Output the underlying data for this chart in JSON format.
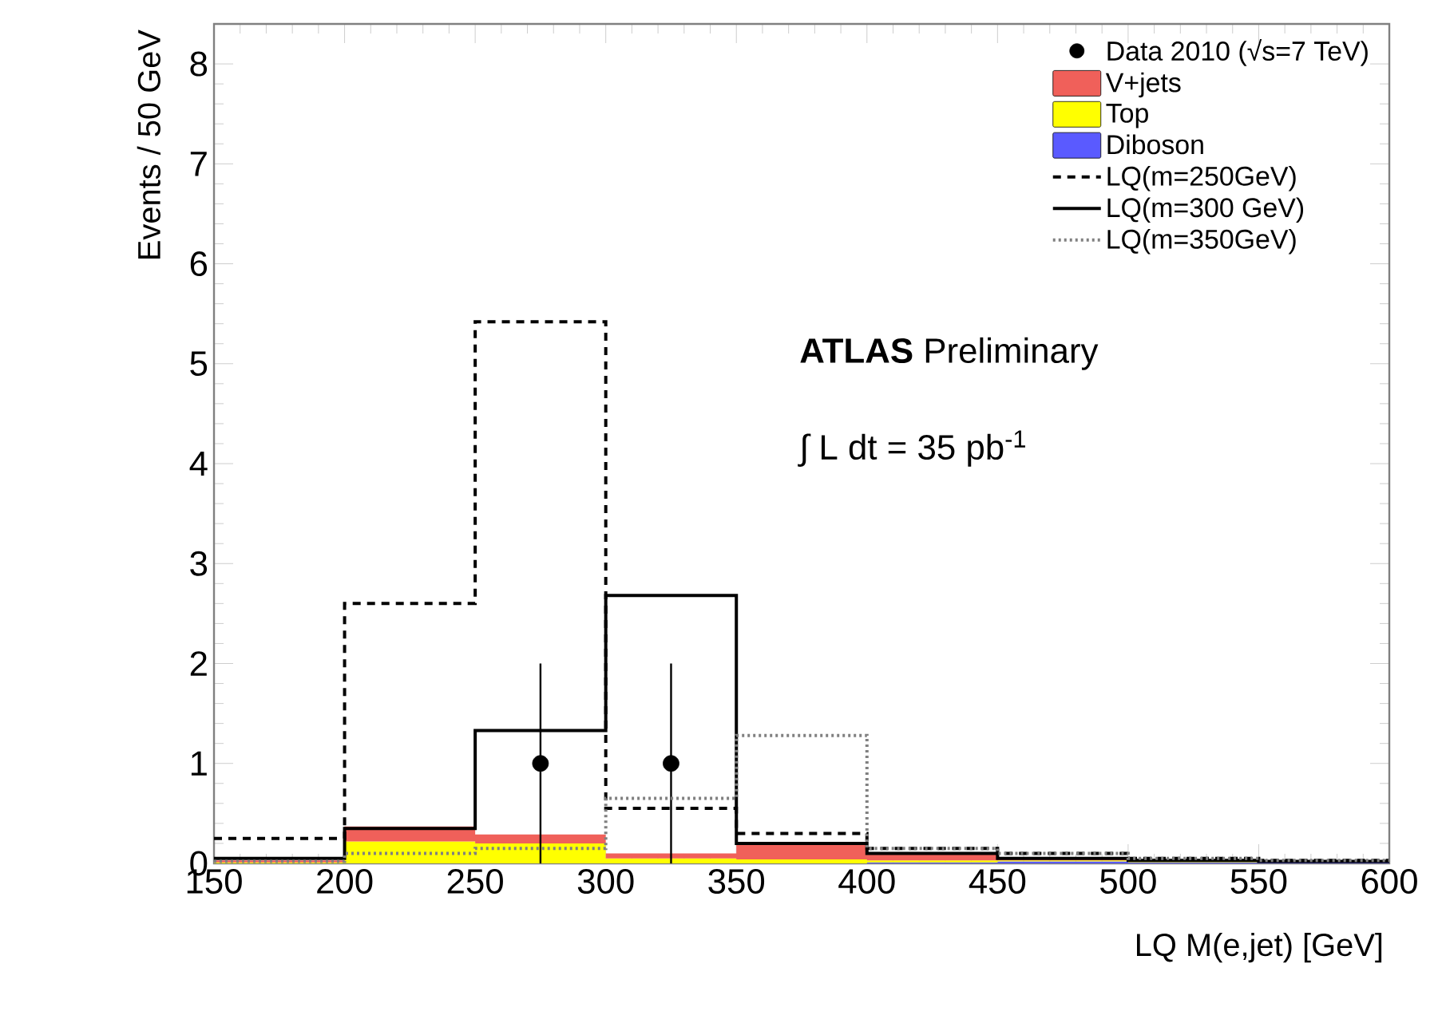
{
  "chart_data": {
    "type": "step",
    "xlabel": "LQ M(e,jet) [GeV]",
    "ylabel": "Events / 50 GeV",
    "stacked": true,
    "series": [
      {
        "name": "Data 2010 (√s=7 TeV)",
        "type": "scatter",
        "color": "#000000",
        "marker": "circle",
        "x": [
          275,
          325
        ],
        "values": [
          1,
          1
        ],
        "errors": [
          1,
          1
        ]
      },
      {
        "name": "Diboson",
        "type": "area",
        "color": "#5a5aff",
        "x": [
          150,
          200,
          250,
          300,
          350,
          400,
          450,
          500,
          550,
          600
        ],
        "values": [
          0,
          0,
          0,
          0,
          0,
          0.01,
          0.02,
          0.01,
          0.01,
          0.01
        ]
      },
      {
        "name": "Top",
        "type": "area",
        "color": "#ffff00",
        "x": [
          150,
          200,
          250,
          300,
          350,
          400,
          450,
          500,
          550,
          600
        ],
        "values": [
          0.01,
          0.22,
          0.2,
          0.05,
          0.04,
          0.02,
          0.01,
          0.01,
          0,
          0
        ]
      },
      {
        "name": "V+jets",
        "type": "area",
        "color": "#f0605a",
        "x": [
          150,
          200,
          250,
          300,
          350,
          400,
          450,
          500,
          550,
          600
        ],
        "values": [
          0.02,
          0.15,
          0.09,
          0.05,
          0.16,
          0.07,
          0.02,
          0.01,
          0.01,
          0.01
        ]
      },
      {
        "name": "LQ(m=250GeV)",
        "color": "#000000",
        "line_style": "dashed",
        "x": [
          150,
          200,
          250,
          300,
          350,
          400,
          450,
          500,
          550,
          600
        ],
        "values": [
          0.25,
          2.6,
          5.42,
          0.55,
          0.3,
          0.15,
          0.1,
          0.05,
          0.03,
          0.03
        ]
      },
      {
        "name": "LQ(m=300 GeV)",
        "color": "#000000",
        "line_style": "solid",
        "x": [
          150,
          200,
          250,
          300,
          350,
          400,
          450,
          500,
          550,
          600
        ],
        "values": [
          0.05,
          0.35,
          1.33,
          2.68,
          0.2,
          0.1,
          0.05,
          0.03,
          0.02,
          0.02
        ]
      },
      {
        "name": "LQ(m=350GeV)",
        "color": "#808080",
        "line_style": "dotted",
        "x": [
          150,
          200,
          250,
          300,
          350,
          400,
          450,
          500,
          550,
          600
        ],
        "values": [
          0.02,
          0.1,
          0.15,
          0.65,
          1.28,
          0.15,
          0.1,
          0.05,
          0.03,
          0.03
        ]
      }
    ],
    "xlim": [
      150,
      600
    ],
    "xticks": [
      150,
      200,
      250,
      300,
      350,
      400,
      450,
      500,
      550,
      600
    ],
    "ylim": [
      0,
      8.4
    ],
    "yticks": [
      0,
      1,
      2,
      3,
      4,
      5,
      6,
      7,
      8
    ],
    "legend": "top right",
    "annotations": [
      "**ATLAS** Preliminary",
      "∫ L dt = 35 pb$^{-1}$"
    ]
  }
}
